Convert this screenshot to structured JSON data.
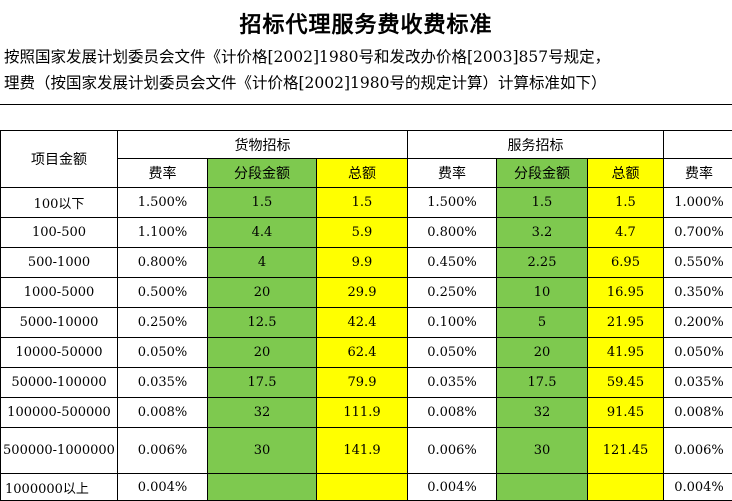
{
  "title": "招标代理服务费收费标准",
  "notes": [
    "按照国家发展计划委员会文件《计价格[2002]1980号和发改办价格[2003]857号规定，",
    "理费（按国家发展计划委员会文件《计价格[2002]1980号的规定计算）计算标准如下）"
  ],
  "table": {
    "item_header": "项目金额",
    "group_goods": "货物招标",
    "group_service": "服务招标",
    "col_rate": "费率",
    "col_segment": "分段金额",
    "col_total": "总额",
    "rows": [
      {
        "range": "100以下",
        "g_rate": "1.500%",
        "g_seg": "1.5",
        "g_total": "1.5",
        "s_rate": "1.500%",
        "s_seg": "1.5",
        "s_total": "1.5",
        "e_rate": "1.000%"
      },
      {
        "range": "100-500",
        "g_rate": "1.100%",
        "g_seg": "4.4",
        "g_total": "5.9",
        "s_rate": "0.800%",
        "s_seg": "3.2",
        "s_total": "4.7",
        "e_rate": "0.700%"
      },
      {
        "range": "500-1000",
        "g_rate": "0.800%",
        "g_seg": "4",
        "g_total": "9.9",
        "s_rate": "0.450%",
        "s_seg": "2.25",
        "s_total": "6.95",
        "e_rate": "0.550%"
      },
      {
        "range": "1000-5000",
        "g_rate": "0.500%",
        "g_seg": "20",
        "g_total": "29.9",
        "s_rate": "0.250%",
        "s_seg": "10",
        "s_total": "16.95",
        "e_rate": "0.350%"
      },
      {
        "range": "5000-10000",
        "g_rate": "0.250%",
        "g_seg": "12.5",
        "g_total": "42.4",
        "s_rate": "0.100%",
        "s_seg": "5",
        "s_total": "21.95",
        "e_rate": "0.200%"
      },
      {
        "range": "10000-50000",
        "g_rate": "0.050%",
        "g_seg": "20",
        "g_total": "62.4",
        "s_rate": "0.050%",
        "s_seg": "20",
        "s_total": "41.95",
        "e_rate": "0.050%"
      },
      {
        "range": "50000-100000",
        "g_rate": "0.035%",
        "g_seg": "17.5",
        "g_total": "79.9",
        "s_rate": "0.035%",
        "s_seg": "17.5",
        "s_total": "59.45",
        "e_rate": "0.035%"
      },
      {
        "range": "100000-500000",
        "g_rate": "0.008%",
        "g_seg": "32",
        "g_total": "111.9",
        "s_rate": "0.008%",
        "s_seg": "32",
        "s_total": "91.45",
        "e_rate": "0.008%"
      },
      {
        "range": "500000-1000000",
        "g_rate": "0.006%",
        "g_seg": "30",
        "g_total": "141.9",
        "s_rate": "0.006%",
        "s_seg": "30",
        "s_total": "121.45",
        "e_rate": "0.006%"
      },
      {
        "range": "1000000以上",
        "g_rate": "0.004%",
        "g_seg": "",
        "g_total": "",
        "s_rate": "0.004%",
        "s_seg": "",
        "s_total": "",
        "e_rate": "0.004%"
      }
    ]
  },
  "colors": {
    "segment_fill": "#7ec94f",
    "total_fill": "#ffff00"
  }
}
